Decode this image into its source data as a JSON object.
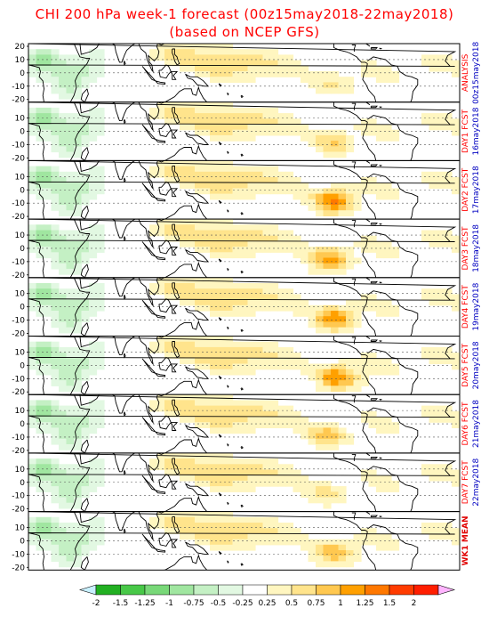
{
  "title": {
    "line1": "CHI 200 hPa week-1 forecast (00z15may2018-22may2018)",
    "line2": "(based on NCEP GFS)"
  },
  "y_ticks": [
    "20",
    "10",
    "0",
    "-10",
    "-20"
  ],
  "panels": [
    {
      "label_top": "ANALYSIS",
      "label_bottom": "00z15may2018",
      "intensity": 0.55,
      "maxlon": 255
    },
    {
      "label_top": "DAY1 FCST",
      "label_bottom": "16may2018",
      "intensity": 0.75,
      "maxlon": 255
    },
    {
      "label_top": "DAY2 FCST",
      "label_bottom": "17may2018",
      "intensity": 1.35,
      "maxlon": 255
    },
    {
      "label_top": "DAY3 FCST",
      "label_bottom": "18may2018",
      "intensity": 1.2,
      "maxlon": 252
    },
    {
      "label_top": "DAY4 FCST",
      "label_bottom": "19may2018",
      "intensity": 1.25,
      "maxlon": 255
    },
    {
      "label_top": "DAY5 FCST",
      "label_bottom": "20may2018",
      "intensity": 1.3,
      "maxlon": 258
    },
    {
      "label_top": "DAY6 FCST",
      "label_bottom": "21may2018",
      "intensity": 0.85,
      "maxlon": 250
    },
    {
      "label_top": "DAY7 FCST",
      "label_bottom": "22may2018",
      "intensity": 0.6,
      "maxlon": 250
    },
    {
      "label_top": "WK1 MEAN",
      "label_bottom": "",
      "intensity": 1.0,
      "maxlon": 255
    }
  ],
  "colorbar": {
    "labels": [
      "-2",
      "-1.5",
      "-1.25",
      "-1",
      "-0.75",
      "-0.5",
      "-0.25",
      "0.25",
      "0.5",
      "0.75",
      "1",
      "1.25",
      "1.5",
      "2"
    ],
    "colors": [
      "#c8f0ff",
      "#22b022",
      "#48c848",
      "#78d878",
      "#a0e6a0",
      "#c4f0c4",
      "#e2f8e2",
      "#ffffff",
      "#fff6c0",
      "#ffe48c",
      "#ffc850",
      "#ffa000",
      "#ff7800",
      "#ff3c00",
      "#ff1e00",
      "#ffb4ff"
    ]
  }
}
